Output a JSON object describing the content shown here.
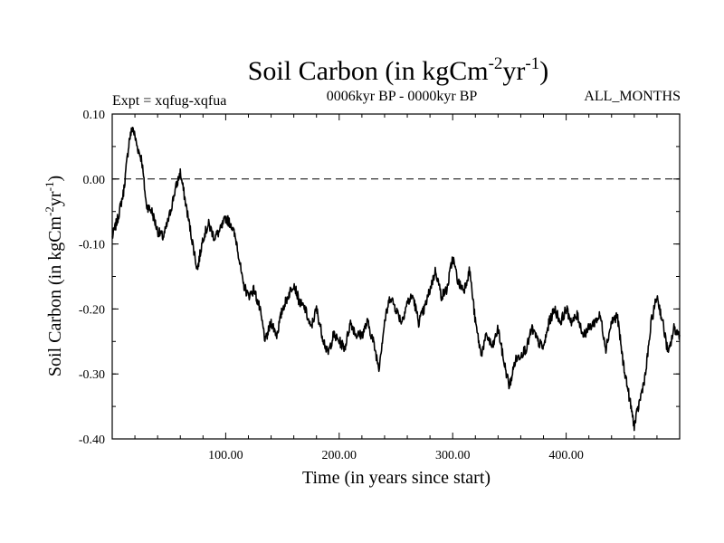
{
  "chart_data": {
    "type": "line",
    "title": {
      "main": "Soil Carbon (in kgCm",
      "exp1": "-2",
      "mid": "yr",
      "exp2": "-1",
      "end": ")"
    },
    "subtitle_left": "Expt = xqfug-xqfua",
    "subtitle_center": "0006kyr BP - 0000kyr BP",
    "subtitle_right": "ALL_MONTHS",
    "xlabel": "Time (in years since start)",
    "ylabel": {
      "main": "Soil Carbon (in kgCm",
      "exp1": "-2",
      "mid": "yr",
      "exp2": "-1",
      "end": ")"
    },
    "xlim": [
      0,
      500
    ],
    "ylim": [
      -0.4,
      0.1
    ],
    "xticks": [
      100,
      200,
      300,
      400
    ],
    "xtick_labels": [
      "100.00",
      "200.00",
      "300.00",
      "400.00"
    ],
    "yticks": [
      0.1,
      0.0,
      -0.1,
      -0.2,
      -0.3,
      -0.4
    ],
    "ytick_labels": [
      "0.10",
      "0.00",
      "-0.10",
      "-0.20",
      "-0.30",
      "-0.40"
    ],
    "reference_line": 0.0,
    "series": [
      {
        "name": "xqfug-xqfua",
        "color": "#000000",
        "x": [
          0,
          5,
          10,
          15,
          18,
          22,
          26,
          30,
          35,
          40,
          45,
          50,
          55,
          60,
          65,
          70,
          75,
          80,
          85,
          90,
          95,
          100,
          105,
          110,
          115,
          120,
          125,
          130,
          135,
          140,
          145,
          150,
          155,
          160,
          165,
          170,
          175,
          180,
          185,
          190,
          195,
          200,
          205,
          210,
          215,
          220,
          225,
          230,
          235,
          240,
          245,
          250,
          255,
          260,
          265,
          270,
          275,
          280,
          285,
          290,
          295,
          300,
          305,
          310,
          315,
          320,
          325,
          330,
          335,
          340,
          345,
          350,
          355,
          360,
          365,
          370,
          375,
          380,
          385,
          390,
          395,
          400,
          405,
          410,
          415,
          420,
          425,
          430,
          435,
          440,
          445,
          450,
          455,
          460,
          465,
          470,
          475,
          480,
          485,
          490,
          495,
          500
        ],
        "y": [
          -0.09,
          -0.06,
          -0.02,
          0.06,
          0.08,
          0.05,
          0.03,
          -0.04,
          -0.05,
          -0.08,
          -0.09,
          -0.06,
          -0.02,
          0.01,
          -0.04,
          -0.09,
          -0.14,
          -0.09,
          -0.07,
          -0.09,
          -0.08,
          -0.06,
          -0.07,
          -0.1,
          -0.16,
          -0.18,
          -0.17,
          -0.2,
          -0.25,
          -0.22,
          -0.24,
          -0.2,
          -0.18,
          -0.16,
          -0.19,
          -0.2,
          -0.23,
          -0.2,
          -0.24,
          -0.27,
          -0.24,
          -0.25,
          -0.26,
          -0.22,
          -0.24,
          -0.24,
          -0.22,
          -0.25,
          -0.29,
          -0.22,
          -0.18,
          -0.2,
          -0.22,
          -0.19,
          -0.18,
          -0.22,
          -0.2,
          -0.17,
          -0.14,
          -0.18,
          -0.17,
          -0.12,
          -0.16,
          -0.17,
          -0.14,
          -0.22,
          -0.27,
          -0.24,
          -0.26,
          -0.23,
          -0.28,
          -0.32,
          -0.28,
          -0.27,
          -0.26,
          -0.23,
          -0.25,
          -0.26,
          -0.22,
          -0.2,
          -0.22,
          -0.2,
          -0.22,
          -0.21,
          -0.24,
          -0.23,
          -0.22,
          -0.21,
          -0.26,
          -0.22,
          -0.21,
          -0.28,
          -0.33,
          -0.38,
          -0.34,
          -0.3,
          -0.22,
          -0.18,
          -0.22,
          -0.27,
          -0.23,
          -0.24
        ]
      }
    ]
  }
}
